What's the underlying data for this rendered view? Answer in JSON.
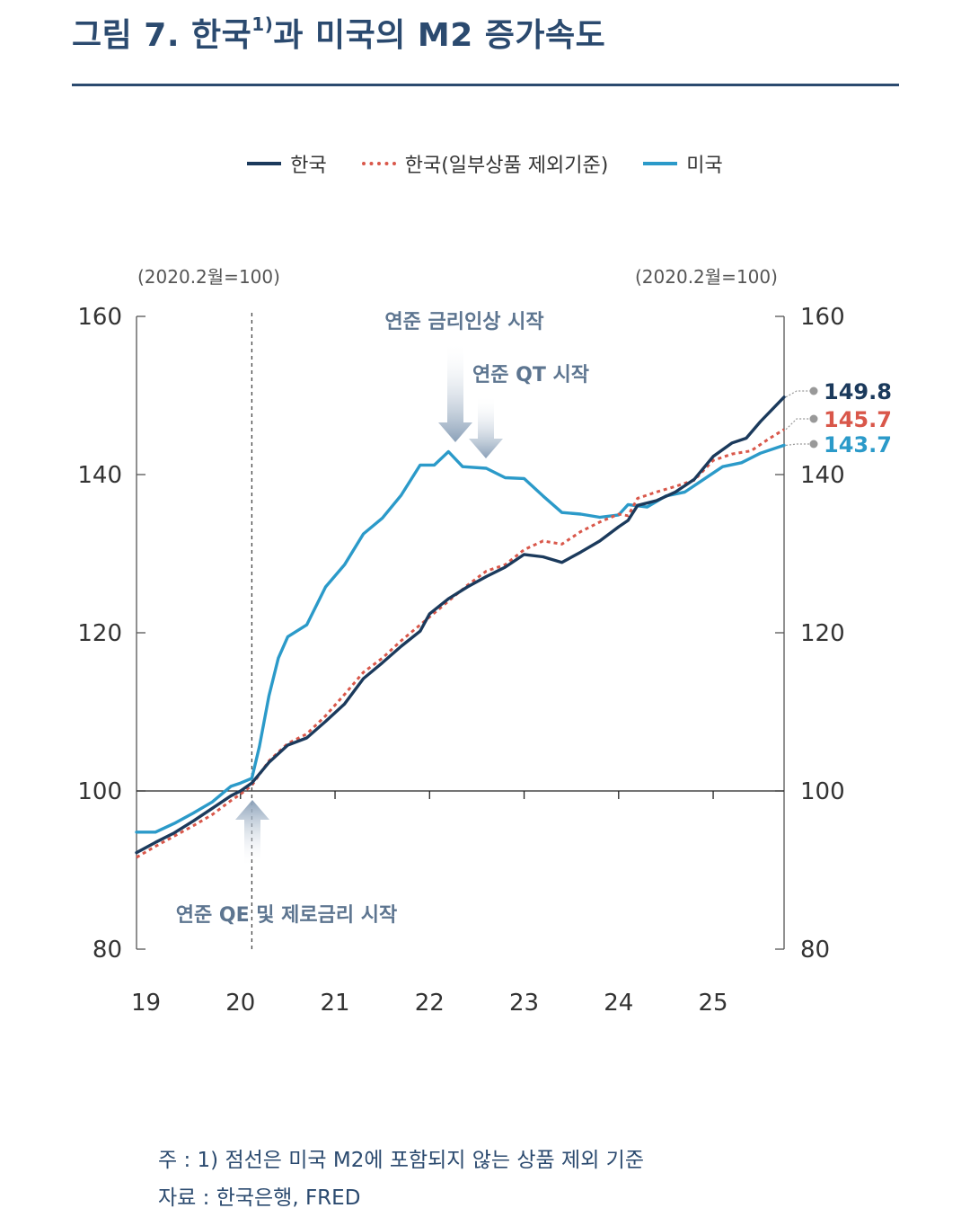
{
  "figure": {
    "title_main": "그림 7. 한국",
    "title_sup": "1)",
    "title_rest": "과 미국의 M2 증가속도"
  },
  "legend": [
    {
      "label": "한국",
      "color": "#1b3a5c",
      "style": "solid"
    },
    {
      "label": "한국(일부상품 제외기준)",
      "color": "#d9574a",
      "style": "dashed"
    },
    {
      "label": "미국",
      "color": "#2b9ac9",
      "style": "solid"
    }
  ],
  "unit_left": "(2020.2월=100)",
  "unit_right": "(2020.2월=100)",
  "chart_data": {
    "type": "line",
    "title": "그림 7. 한국1)과 미국의 M2 증가속도",
    "x_ticks": [
      "19",
      "20",
      "21",
      "22",
      "23",
      "24",
      "25"
    ],
    "x_tick_positions": [
      2019.0,
      2020.0,
      2021.0,
      2022.0,
      2023.0,
      2024.0,
      2025.0
    ],
    "xlim": [
      2018.9,
      2025.75
    ],
    "ylim": [
      80,
      160
    ],
    "y_ticks": [
      80,
      100,
      120,
      140,
      160
    ],
    "reference_line_y": 100,
    "vertical_marker_x": 2020.12,
    "series": [
      {
        "name": "한국",
        "color": "#1b3a5c",
        "dash": false,
        "points": [
          [
            2018.9,
            92.2
          ],
          [
            2019.1,
            93.5
          ],
          [
            2019.3,
            94.7
          ],
          [
            2019.5,
            96.2
          ],
          [
            2019.7,
            97.8
          ],
          [
            2019.9,
            99.4
          ],
          [
            2020.0,
            100.0
          ],
          [
            2020.12,
            101.0
          ],
          [
            2020.3,
            103.6
          ],
          [
            2020.5,
            105.8
          ],
          [
            2020.7,
            106.7
          ],
          [
            2020.9,
            108.8
          ],
          [
            2021.1,
            111.0
          ],
          [
            2021.3,
            114.2
          ],
          [
            2021.5,
            116.2
          ],
          [
            2021.7,
            118.3
          ],
          [
            2021.9,
            120.2
          ],
          [
            2022.0,
            122.4
          ],
          [
            2022.2,
            124.3
          ],
          [
            2022.4,
            125.8
          ],
          [
            2022.6,
            127.1
          ],
          [
            2022.8,
            128.3
          ],
          [
            2023.0,
            129.9
          ],
          [
            2023.2,
            129.6
          ],
          [
            2023.4,
            128.9
          ],
          [
            2023.6,
            130.2
          ],
          [
            2023.8,
            131.6
          ],
          [
            2024.0,
            133.4
          ],
          [
            2024.1,
            134.2
          ],
          [
            2024.2,
            136.1
          ],
          [
            2024.4,
            136.7
          ],
          [
            2024.6,
            137.8
          ],
          [
            2024.8,
            139.4
          ],
          [
            2025.0,
            142.3
          ],
          [
            2025.2,
            144.0
          ],
          [
            2025.35,
            144.6
          ],
          [
            2025.5,
            146.7
          ],
          [
            2025.75,
            149.8
          ]
        ]
      },
      {
        "name": "한국(일부상품 제외기준)",
        "color": "#d9574a",
        "dash": true,
        "points": [
          [
            2018.9,
            91.6
          ],
          [
            2019.1,
            93.0
          ],
          [
            2019.3,
            94.3
          ],
          [
            2019.5,
            95.6
          ],
          [
            2019.7,
            97.0
          ],
          [
            2019.9,
            98.8
          ],
          [
            2020.0,
            99.6
          ],
          [
            2020.12,
            100.7
          ],
          [
            2020.3,
            103.8
          ],
          [
            2020.5,
            106.0
          ],
          [
            2020.7,
            107.2
          ],
          [
            2020.9,
            109.5
          ],
          [
            2021.1,
            112.2
          ],
          [
            2021.3,
            115.0
          ],
          [
            2021.5,
            116.8
          ],
          [
            2021.7,
            119.0
          ],
          [
            2021.9,
            121.0
          ],
          [
            2022.0,
            122.0
          ],
          [
            2022.2,
            124.0
          ],
          [
            2022.4,
            126.0
          ],
          [
            2022.6,
            127.8
          ],
          [
            2022.8,
            128.6
          ],
          [
            2023.0,
            130.5
          ],
          [
            2023.2,
            131.6
          ],
          [
            2023.4,
            131.2
          ],
          [
            2023.6,
            132.8
          ],
          [
            2023.8,
            134.0
          ],
          [
            2024.0,
            135.0
          ],
          [
            2024.1,
            134.8
          ],
          [
            2024.2,
            137.0
          ],
          [
            2024.4,
            137.8
          ],
          [
            2024.6,
            138.5
          ],
          [
            2024.8,
            139.3
          ],
          [
            2025.0,
            141.8
          ],
          [
            2025.2,
            142.6
          ],
          [
            2025.4,
            143.0
          ],
          [
            2025.6,
            144.6
          ],
          [
            2025.75,
            145.7
          ]
        ]
      },
      {
        "name": "미국",
        "color": "#2b9ac9",
        "dash": false,
        "points": [
          [
            2018.9,
            94.8
          ],
          [
            2019.1,
            94.8
          ],
          [
            2019.3,
            95.9
          ],
          [
            2019.5,
            97.2
          ],
          [
            2019.7,
            98.6
          ],
          [
            2019.9,
            100.6
          ],
          [
            2020.0,
            101.0
          ],
          [
            2020.12,
            101.6
          ],
          [
            2020.2,
            105.6
          ],
          [
            2020.3,
            112.0
          ],
          [
            2020.4,
            116.8
          ],
          [
            2020.5,
            119.5
          ],
          [
            2020.7,
            121.0
          ],
          [
            2020.9,
            125.8
          ],
          [
            2021.1,
            128.6
          ],
          [
            2021.3,
            132.5
          ],
          [
            2021.5,
            134.5
          ],
          [
            2021.7,
            137.4
          ],
          [
            2021.9,
            141.2
          ],
          [
            2022.05,
            141.2
          ],
          [
            2022.2,
            142.9
          ],
          [
            2022.35,
            141.0
          ],
          [
            2022.6,
            140.8
          ],
          [
            2022.8,
            139.6
          ],
          [
            2023.0,
            139.5
          ],
          [
            2023.2,
            137.3
          ],
          [
            2023.4,
            135.2
          ],
          [
            2023.6,
            135.0
          ],
          [
            2023.8,
            134.6
          ],
          [
            2024.0,
            134.9
          ],
          [
            2024.1,
            136.2
          ],
          [
            2024.3,
            135.9
          ],
          [
            2024.5,
            137.3
          ],
          [
            2024.7,
            137.8
          ],
          [
            2024.9,
            139.4
          ],
          [
            2025.1,
            141.0
          ],
          [
            2025.3,
            141.5
          ],
          [
            2025.5,
            142.7
          ],
          [
            2025.75,
            143.7
          ]
        ]
      }
    ],
    "end_labels": [
      {
        "text": "149.8",
        "color": "#1b3a5c",
        "value": 149.8
      },
      {
        "text": "145.7",
        "color": "#d9574a",
        "value": 145.7
      },
      {
        "text": "143.7",
        "color": "#2b9ac9",
        "value": 143.7
      }
    ],
    "annotations": [
      {
        "text": "연준 금리인상 시작"
      },
      {
        "text": "연준 QT 시작"
      },
      {
        "text": "연준 QE 및 제로금리 시작"
      }
    ]
  },
  "notes": {
    "line1": "주 : 1) 점선은 미국 M2에 포함되지 않는 상품 제외 기준",
    "line2": "자료 : 한국은행, FRED"
  }
}
